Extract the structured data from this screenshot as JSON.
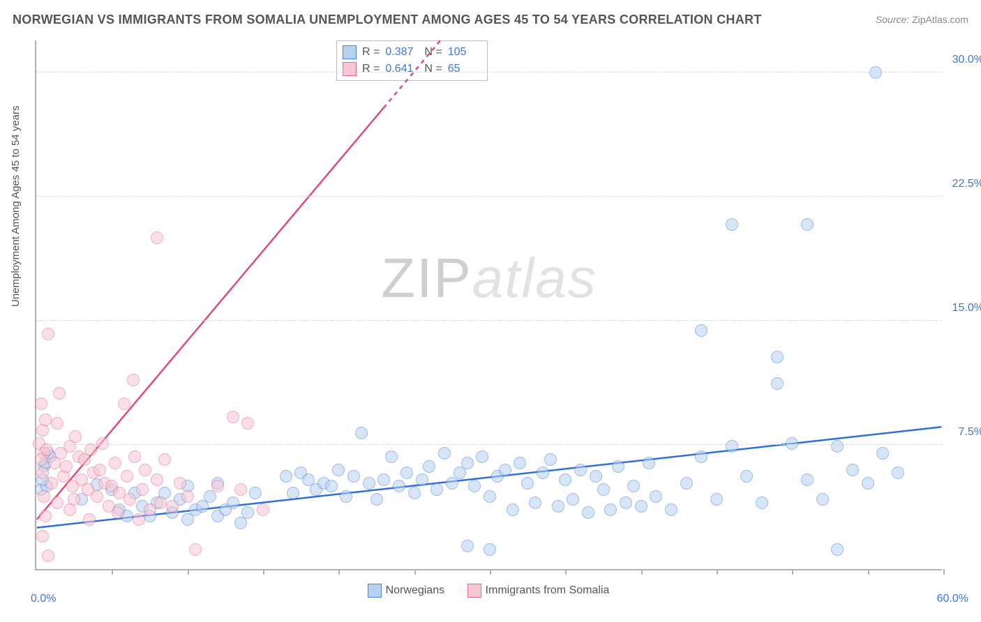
{
  "title": "NORWEGIAN VS IMMIGRANTS FROM SOMALIA UNEMPLOYMENT AMONG AGES 45 TO 54 YEARS CORRELATION CHART",
  "source_label": "Source:",
  "source_value": "ZipAtlas.com",
  "ylabel": "Unemployment Among Ages 45 to 54 years",
  "watermark_a": "ZIP",
  "watermark_b": "atlas",
  "chart": {
    "type": "scatter",
    "x_range": [
      0,
      60
    ],
    "y_range": [
      0,
      32
    ],
    "x_origin_label": "0.0%",
    "x_max_label": "60.0%",
    "y_ticks": [
      7.5,
      15.0,
      22.5,
      30.0
    ],
    "y_tick_labels": [
      "7.5%",
      "15.0%",
      "22.5%",
      "30.0%"
    ],
    "x_minor_ticks": [
      5,
      10,
      15,
      20,
      25,
      30,
      35,
      40,
      45,
      50,
      55,
      60
    ],
    "background_color": "#ffffff",
    "grid_color": "#d8d8d8",
    "axis_color": "#b0b0b0",
    "marker_radius": 9,
    "marker_opacity": 0.55,
    "series": [
      {
        "name": "Norwegians",
        "fill": "#b7d1f2",
        "stroke": "#4a86e0",
        "reg_color": "#2f6fd8",
        "reg_y0": 2.5,
        "reg_y60": 8.6,
        "solid_until_x": 60,
        "R": "0.387",
        "N": "105",
        "points": [
          [
            0.3,
            4.8
          ],
          [
            0.5,
            6.2
          ],
          [
            0.7,
            5.0
          ],
          [
            0.8,
            7.0
          ],
          [
            0.6,
            6.4
          ],
          [
            0.4,
            5.4
          ],
          [
            0.9,
            6.8
          ],
          [
            3,
            4.2
          ],
          [
            4,
            5.1
          ],
          [
            5,
            4.8
          ],
          [
            5.5,
            3.6
          ],
          [
            6,
            3.2
          ],
          [
            6.5,
            4.6
          ],
          [
            7,
            3.8
          ],
          [
            7.5,
            3.2
          ],
          [
            8,
            4.0
          ],
          [
            8.5,
            4.6
          ],
          [
            9,
            3.4
          ],
          [
            9.5,
            4.2
          ],
          [
            10,
            3.0
          ],
          [
            10,
            5.0
          ],
          [
            10.5,
            3.6
          ],
          [
            11,
            3.8
          ],
          [
            11.5,
            4.4
          ],
          [
            12,
            3.2
          ],
          [
            12,
            5.2
          ],
          [
            12.5,
            3.6
          ],
          [
            13,
            4.0
          ],
          [
            13.5,
            2.8
          ],
          [
            14,
            3.4
          ],
          [
            14.5,
            4.6
          ],
          [
            16.5,
            5.6
          ],
          [
            17,
            4.6
          ],
          [
            17.5,
            5.8
          ],
          [
            18,
            5.4
          ],
          [
            18.5,
            4.8
          ],
          [
            19,
            5.2
          ],
          [
            19.5,
            5.0
          ],
          [
            20,
            6.0
          ],
          [
            20.5,
            4.4
          ],
          [
            21,
            5.6
          ],
          [
            21.5,
            8.2
          ],
          [
            22,
            5.2
          ],
          [
            22.5,
            4.2
          ],
          [
            23,
            5.4
          ],
          [
            23.5,
            6.8
          ],
          [
            24,
            5.0
          ],
          [
            24.5,
            5.8
          ],
          [
            25,
            4.6
          ],
          [
            25.5,
            5.4
          ],
          [
            26,
            6.2
          ],
          [
            26.5,
            4.8
          ],
          [
            27,
            7.0
          ],
          [
            27.5,
            5.2
          ],
          [
            28,
            5.8
          ],
          [
            28.5,
            6.4
          ],
          [
            28.5,
            1.4
          ],
          [
            29,
            5.0
          ],
          [
            29.5,
            6.8
          ],
          [
            30,
            4.4
          ],
          [
            30,
            1.2
          ],
          [
            30.5,
            5.6
          ],
          [
            31,
            6.0
          ],
          [
            31.5,
            3.6
          ],
          [
            32,
            6.4
          ],
          [
            32.5,
            5.2
          ],
          [
            33,
            4.0
          ],
          [
            33.5,
            5.8
          ],
          [
            34,
            6.6
          ],
          [
            34.5,
            3.8
          ],
          [
            35,
            5.4
          ],
          [
            35.5,
            4.2
          ],
          [
            36,
            6.0
          ],
          [
            36.5,
            3.4
          ],
          [
            37,
            5.6
          ],
          [
            37.5,
            4.8
          ],
          [
            38,
            3.6
          ],
          [
            38.5,
            6.2
          ],
          [
            39,
            4.0
          ],
          [
            39.5,
            5.0
          ],
          [
            40,
            3.8
          ],
          [
            40.5,
            6.4
          ],
          [
            41,
            4.4
          ],
          [
            42,
            3.6
          ],
          [
            43,
            5.2
          ],
          [
            44,
            6.8
          ],
          [
            44,
            14.4
          ],
          [
            45,
            4.2
          ],
          [
            46,
            7.4
          ],
          [
            46,
            20.8
          ],
          [
            47,
            5.6
          ],
          [
            48,
            4.0
          ],
          [
            49,
            12.8
          ],
          [
            49,
            11.2
          ],
          [
            50,
            7.6
          ],
          [
            51,
            5.4
          ],
          [
            51,
            20.8
          ],
          [
            52,
            4.2
          ],
          [
            53,
            7.4
          ],
          [
            53,
            1.2
          ],
          [
            54,
            6.0
          ],
          [
            55,
            5.2
          ],
          [
            55.5,
            30.0
          ],
          [
            56,
            7.0
          ],
          [
            57,
            5.8
          ]
        ]
      },
      {
        "name": "Immigrants from Somalia",
        "fill": "#f6c7d2",
        "stroke": "#e66b8d",
        "reg_color": "#e04a7a",
        "reg_y0": 3.0,
        "reg_y60": 68.0,
        "solid_until_x": 23,
        "R": "0.641",
        "N": "65",
        "points": [
          [
            0.2,
            7.6
          ],
          [
            0.3,
            10.0
          ],
          [
            0.4,
            8.4
          ],
          [
            0.5,
            7.0
          ],
          [
            0.3,
            6.6
          ],
          [
            0.6,
            9.0
          ],
          [
            0.4,
            5.8
          ],
          [
            0.7,
            7.2
          ],
          [
            0.8,
            14.2
          ],
          [
            0.5,
            4.4
          ],
          [
            0.6,
            3.2
          ],
          [
            0.4,
            2.0
          ],
          [
            0.8,
            0.8
          ],
          [
            1.0,
            5.2
          ],
          [
            1.2,
            6.4
          ],
          [
            1.4,
            8.8
          ],
          [
            1.5,
            10.6
          ],
          [
            1.6,
            7.0
          ],
          [
            1.8,
            5.6
          ],
          [
            1.4,
            4.0
          ],
          [
            2.0,
            6.2
          ],
          [
            2.2,
            7.4
          ],
          [
            2.4,
            5.0
          ],
          [
            2.5,
            4.2
          ],
          [
            2.8,
            6.8
          ],
          [
            2.6,
            8.0
          ],
          [
            2.2,
            3.6
          ],
          [
            3.0,
            5.4
          ],
          [
            3.2,
            6.6
          ],
          [
            3.4,
            4.8
          ],
          [
            3.5,
            3.0
          ],
          [
            3.8,
            5.8
          ],
          [
            3.6,
            7.2
          ],
          [
            4.0,
            4.4
          ],
          [
            4.2,
            6.0
          ],
          [
            4.5,
            5.2
          ],
          [
            4.8,
            3.8
          ],
          [
            4.4,
            7.6
          ],
          [
            5.0,
            5.0
          ],
          [
            5.2,
            6.4
          ],
          [
            5.5,
            4.6
          ],
          [
            5.8,
            10.0
          ],
          [
            5.4,
            3.4
          ],
          [
            6.0,
            5.6
          ],
          [
            6.2,
            4.2
          ],
          [
            6.5,
            6.8
          ],
          [
            6.8,
            3.0
          ],
          [
            6.4,
            11.4
          ],
          [
            7.0,
            4.8
          ],
          [
            7.2,
            6.0
          ],
          [
            7.5,
            3.6
          ],
          [
            8.0,
            5.4
          ],
          [
            8.2,
            4.0
          ],
          [
            8,
            20.0
          ],
          [
            8.5,
            6.6
          ],
          [
            9.0,
            3.8
          ],
          [
            9.5,
            5.2
          ],
          [
            10,
            4.4
          ],
          [
            10.5,
            1.2
          ],
          [
            12,
            5.0
          ],
          [
            13,
            9.2
          ],
          [
            13.5,
            4.8
          ],
          [
            14,
            8.8
          ],
          [
            15,
            3.6
          ]
        ]
      }
    ]
  },
  "legend_bottom": {
    "a": "Norwegians",
    "b": "Immigrants from Somalia"
  }
}
